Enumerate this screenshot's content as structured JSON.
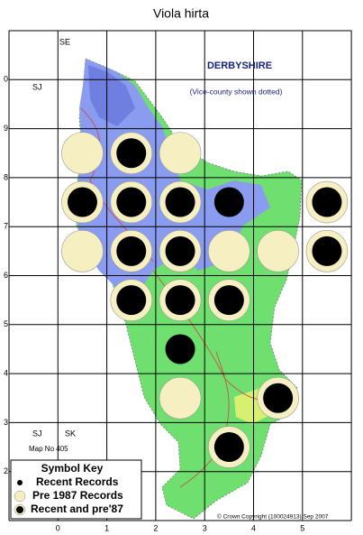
{
  "header": {
    "title": "Viola hirta"
  },
  "grid_labels": {
    "east": [
      0,
      1,
      2,
      3,
      4,
      5
    ],
    "north": [
      0,
      9,
      8,
      7,
      6,
      5,
      4,
      3,
      2
    ]
  },
  "map_labels": {
    "se": "SE",
    "sj_top": "SJ",
    "sj_bottom": "SJ",
    "sk": "SK",
    "county": "DERBYSHIRE",
    "note": "(Vice-county shown dotted)",
    "map_no": "Map No 405",
    "copyright": "© Crown Copyright (100024913) Sep 2007"
  },
  "legend": {
    "title": "Symbol Key",
    "items": [
      "Recent Records",
      "Pre 1987 Records",
      "Recent and pre'87"
    ]
  }
}
